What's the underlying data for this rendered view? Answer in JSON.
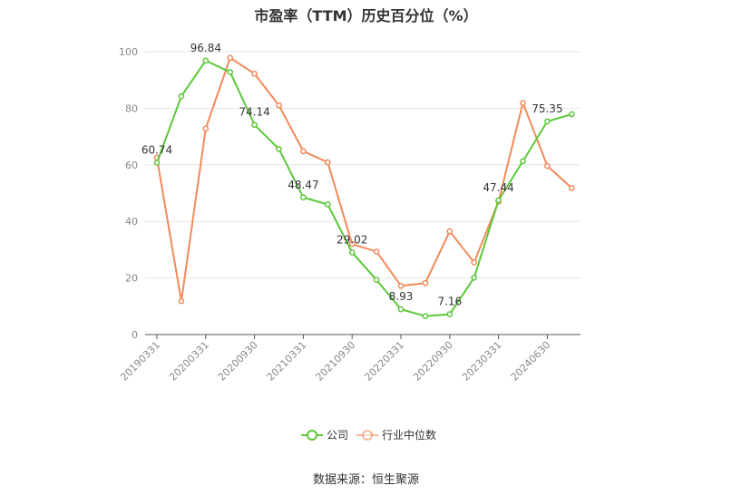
{
  "chart_data": {
    "type": "line",
    "title": "市盈率（TTM）历史百分位（%）",
    "source": "数据来源：恒生聚源",
    "xlabel": "",
    "ylabel": "",
    "ylim": [
      0,
      100
    ],
    "yticks": [
      0,
      20,
      40,
      60,
      80,
      100
    ],
    "grid": true,
    "legend_position": "bottom",
    "x_tick_labels": [
      "20190331",
      "20200331",
      "20200930",
      "20210331",
      "20210930",
      "20220331",
      "20220930",
      "20230331",
      "20240630"
    ],
    "series": [
      {
        "name": "公司",
        "color": "#5cc73a",
        "values": [
          60.74,
          84.2,
          96.84,
          92.8,
          74.14,
          65.6,
          48.47,
          46.0,
          29.02,
          19.3,
          8.93,
          6.5,
          7.16,
          20.1,
          47.44,
          61.3,
          75.35,
          77.9
        ],
        "labels": {
          "0": "60.74",
          "2": "96.84",
          "4": "74.14",
          "6": "48.47",
          "8": "29.02",
          "10": "8.93",
          "12": "7.16",
          "14": "47.44",
          "16": "75.35"
        }
      },
      {
        "name": "行业中位数",
        "color": "#f28a5a",
        "values": [
          62.5,
          11.8,
          72.8,
          97.8,
          92.2,
          81.0,
          64.8,
          60.9,
          32.0,
          29.3,
          17.2,
          18.2,
          36.5,
          25.5,
          47.0,
          81.9,
          59.6,
          51.8
        ]
      }
    ]
  }
}
